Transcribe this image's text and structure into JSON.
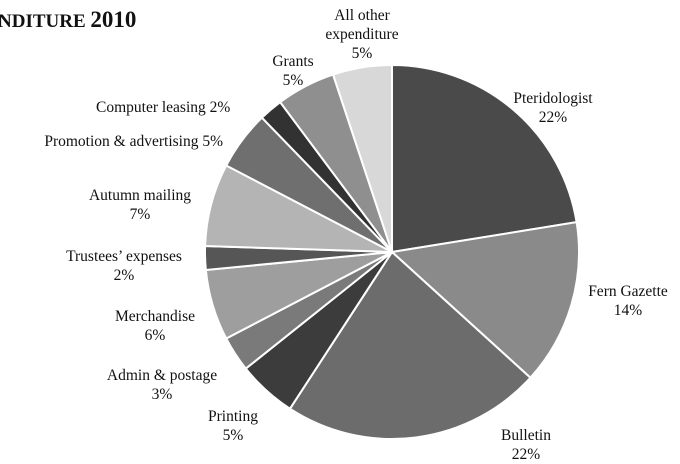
{
  "title_text": "NDITURE",
  "title_year": "2010",
  "chart_data": {
    "type": "pie",
    "title": "NDITURE 2010",
    "unit": "%",
    "slices": [
      {
        "label": "Pteridologist",
        "value": 22,
        "value_label": "22%",
        "color": "#4a4a4a"
      },
      {
        "label": "Fern Gazette",
        "value": 14,
        "value_label": "14%",
        "color": "#8a8a8a"
      },
      {
        "label": "Bulletin",
        "value": 22,
        "value_label": "22%",
        "color": "#6c6c6c"
      },
      {
        "label": "Printing",
        "value": 5,
        "value_label": "5%",
        "color": "#3c3c3c"
      },
      {
        "label": "Admin & postage",
        "value": 3,
        "value_label": "3%",
        "color": "#7a7a7a"
      },
      {
        "label": "Merchandise",
        "value": 6,
        "value_label": "6%",
        "color": "#9e9e9e"
      },
      {
        "label": "Trustees’ expenses",
        "value": 2,
        "value_label": "2%",
        "color": "#565656"
      },
      {
        "label": "Autumn mailing",
        "value": 7,
        "value_label": "7%",
        "color": "#b4b4b4"
      },
      {
        "label": "Promotion & advertising",
        "value": 5,
        "value_label": "5%",
        "color": "#6f6f6f"
      },
      {
        "label": "Computer leasing",
        "value": 2,
        "value_label": "2%",
        "color": "#323232"
      },
      {
        "label": "Grants",
        "value": 5,
        "value_label": "5%",
        "color": "#8f8f8f"
      },
      {
        "label": "All other expenditure",
        "value": 5,
        "value_label": "5%",
        "color": "#d8d8d8"
      }
    ]
  }
}
